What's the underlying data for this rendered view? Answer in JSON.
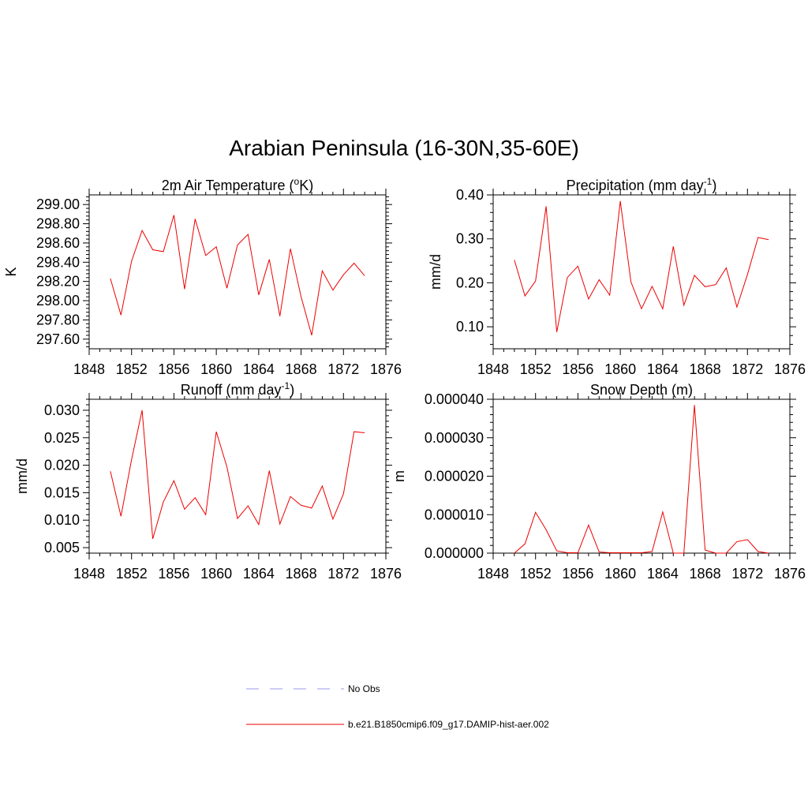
{
  "main_title": "Arabian Peninsula (16-30N,35-60E)",
  "legend": [
    {
      "label": "No Obs",
      "color": "#9999ee",
      "dash": true
    },
    {
      "label": "b.e21.B1850cmip6.f09_g17.DAMIP-hist-aer.002",
      "color": "#ee0000",
      "dash": false
    }
  ],
  "chart_data": [
    {
      "type": "line",
      "title": "2m Air Temperature (",
      "title_sup": "o",
      "title_after": "K)",
      "ylabel": "K",
      "xlim": [
        1848,
        1876
      ],
      "ylim": [
        297.5,
        299.1
      ],
      "xticks": [
        1848,
        1852,
        1856,
        1860,
        1864,
        1868,
        1872,
        1876
      ],
      "yticks": [
        "297.60",
        "297.80",
        "298.00",
        "298.20",
        "298.40",
        "298.60",
        "298.80",
        "299.00"
      ],
      "series": [
        {
          "x": [
            1850,
            1851,
            1852,
            1853,
            1854,
            1855,
            1856,
            1857,
            1858,
            1859,
            1860,
            1861,
            1862,
            1863,
            1864,
            1865,
            1866,
            1867,
            1868,
            1869,
            1870,
            1871,
            1872,
            1873,
            1874
          ],
          "values": [
            298.23,
            297.85,
            298.41,
            298.73,
            298.53,
            298.51,
            298.89,
            298.12,
            298.85,
            298.47,
            298.56,
            298.13,
            298.58,
            298.69,
            298.06,
            298.43,
            297.84,
            298.54,
            298.04,
            297.64,
            298.31,
            298.11,
            298.27,
            298.39,
            298.26
          ]
        }
      ]
    },
    {
      "type": "line",
      "title": "Precipitation (mm day",
      "title_sup": "-1",
      "title_after": ")",
      "ylabel": "mm/d",
      "xlim": [
        1848,
        1876
      ],
      "ylim": [
        0.05,
        0.4
      ],
      "xticks": [
        1848,
        1852,
        1856,
        1860,
        1864,
        1868,
        1872,
        1876
      ],
      "yticks": [
        "0.10",
        "0.20",
        "0.30",
        "0.40"
      ],
      "series": [
        {
          "x": [
            1850,
            1851,
            1852,
            1853,
            1854,
            1855,
            1856,
            1857,
            1858,
            1859,
            1860,
            1861,
            1862,
            1863,
            1864,
            1865,
            1866,
            1867,
            1868,
            1869,
            1870,
            1871,
            1872,
            1873,
            1874
          ],
          "values": [
            0.252,
            0.17,
            0.204,
            0.374,
            0.088,
            0.212,
            0.238,
            0.163,
            0.207,
            0.172,
            0.386,
            0.202,
            0.141,
            0.192,
            0.141,
            0.283,
            0.149,
            0.217,
            0.191,
            0.196,
            0.234,
            0.145,
            0.219,
            0.303,
            0.298
          ]
        }
      ]
    },
    {
      "type": "line",
      "title": "Runoff (mm day",
      "title_sup": "-1",
      "title_after": ")",
      "ylabel": "mm/d",
      "xlim": [
        1848,
        1876
      ],
      "ylim": [
        0.004,
        0.032
      ],
      "xticks": [
        1848,
        1852,
        1856,
        1860,
        1864,
        1868,
        1872,
        1876
      ],
      "yticks": [
        "0.005",
        "0.010",
        "0.015",
        "0.020",
        "0.025",
        "0.030"
      ],
      "series": [
        {
          "x": [
            1850,
            1851,
            1852,
            1853,
            1854,
            1855,
            1856,
            1857,
            1858,
            1859,
            1860,
            1861,
            1862,
            1863,
            1864,
            1865,
            1866,
            1867,
            1868,
            1869,
            1870,
            1871,
            1872,
            1873,
            1874
          ],
          "values": [
            0.0189,
            0.0107,
            0.021,
            0.03,
            0.0066,
            0.0133,
            0.0172,
            0.012,
            0.0141,
            0.011,
            0.0261,
            0.0197,
            0.0103,
            0.0126,
            0.0092,
            0.019,
            0.0093,
            0.0143,
            0.0127,
            0.0122,
            0.0162,
            0.0102,
            0.0148,
            0.0261,
            0.0259
          ]
        }
      ]
    },
    {
      "type": "line",
      "title": "Snow Depth (m)",
      "title_sup": "",
      "title_after": "",
      "ylabel": "m",
      "xlim": [
        1848,
        1876
      ],
      "ylim": [
        0,
        4e-05
      ],
      "xticks": [
        1848,
        1852,
        1856,
        1860,
        1864,
        1868,
        1872,
        1876
      ],
      "yticks": [
        "0.000000",
        "0.000010",
        "0.000020",
        "0.000030",
        "0.000040"
      ],
      "series": [
        {
          "x": [
            1850,
            1851,
            1852,
            1853,
            1854,
            1855,
            1856,
            1857,
            1858,
            1859,
            1860,
            1861,
            1862,
            1863,
            1864,
            1865,
            1866,
            1867,
            1868,
            1869,
            1870,
            1871,
            1872,
            1873,
            1874
          ],
          "values": [
            0.0,
            2.4e-06,
            1.06e-05,
            6.1e-06,
            6e-07,
            1e-07,
            1e-07,
            7.3e-06,
            3e-07,
            1e-07,
            1e-07,
            1e-07,
            1e-07,
            4e-07,
            1.07e-05,
            0.0,
            0.0,
            3.85e-05,
            8e-07,
            0.0,
            0.0,
            3e-06,
            3.5e-06,
            4e-07,
            0.0
          ]
        }
      ]
    }
  ]
}
